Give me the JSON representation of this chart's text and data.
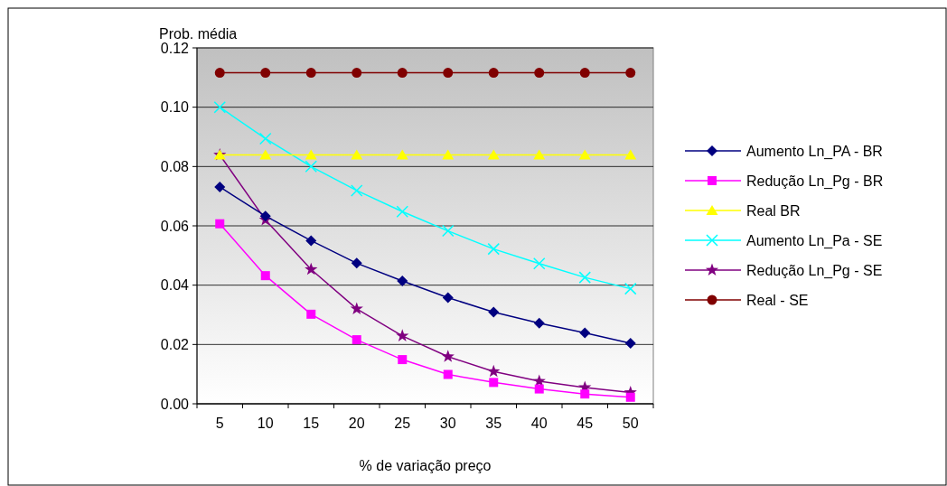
{
  "chart_data": {
    "type": "line",
    "ylabel": "Prob. média",
    "xlabel": "% de variação preço",
    "categories": [
      "5",
      "10",
      "15",
      "20",
      "25",
      "30",
      "35",
      "40",
      "45",
      "50"
    ],
    "ylim": [
      0,
      0.12
    ],
    "yticks": [
      {
        "value": 0,
        "label": "0.00"
      },
      {
        "value": 0.02,
        "label": "0.02"
      },
      {
        "value": 0.04,
        "label": "0.04"
      },
      {
        "value": 0.06,
        "label": "0.06"
      },
      {
        "value": 0.08,
        "label": "0.08"
      },
      {
        "value": 0.1,
        "label": "0.10"
      },
      {
        "value": 0.12,
        "label": "0.12"
      }
    ],
    "grid": "y",
    "legend": "right",
    "series": [
      {
        "name": "Aumento Ln_PA - BR",
        "color": "#000080",
        "marker": "diamond",
        "values": [
          0.0731,
          0.0633,
          0.055,
          0.0474,
          0.0414,
          0.0358,
          0.0309,
          0.0272,
          0.0239,
          0.0204
        ]
      },
      {
        "name": "Redução Ln_Pg - BR",
        "color": "#ff00ff",
        "marker": "square",
        "values": [
          0.0607,
          0.0432,
          0.0302,
          0.0216,
          0.0149,
          0.0099,
          0.0072,
          0.005,
          0.0033,
          0.0022
        ]
      },
      {
        "name": "Real BR",
        "color": "#ffff00",
        "marker": "triangle",
        "values": [
          0.0839,
          0.0839,
          0.0839,
          0.0839,
          0.0839,
          0.0839,
          0.0839,
          0.0839,
          0.0839,
          0.0839
        ]
      },
      {
        "name": "Aumento Ln_Pa - SE",
        "color": "#00ffff",
        "marker": "cross",
        "values": [
          0.1,
          0.0894,
          0.08,
          0.0719,
          0.0648,
          0.0583,
          0.0522,
          0.0473,
          0.0426,
          0.0388
        ]
      },
      {
        "name": "Redução Ln_Pg - SE",
        "color": "#800080",
        "marker": "star",
        "values": [
          0.0839,
          0.062,
          0.0453,
          0.032,
          0.0229,
          0.0159,
          0.0109,
          0.0076,
          0.0055,
          0.0038
        ]
      },
      {
        "name": "Real - SE",
        "color": "#800000",
        "marker": "circle",
        "values": [
          0.1116,
          0.1116,
          0.1116,
          0.1116,
          0.1116,
          0.1116,
          0.1116,
          0.1116,
          0.1116,
          0.1116
        ]
      }
    ]
  }
}
